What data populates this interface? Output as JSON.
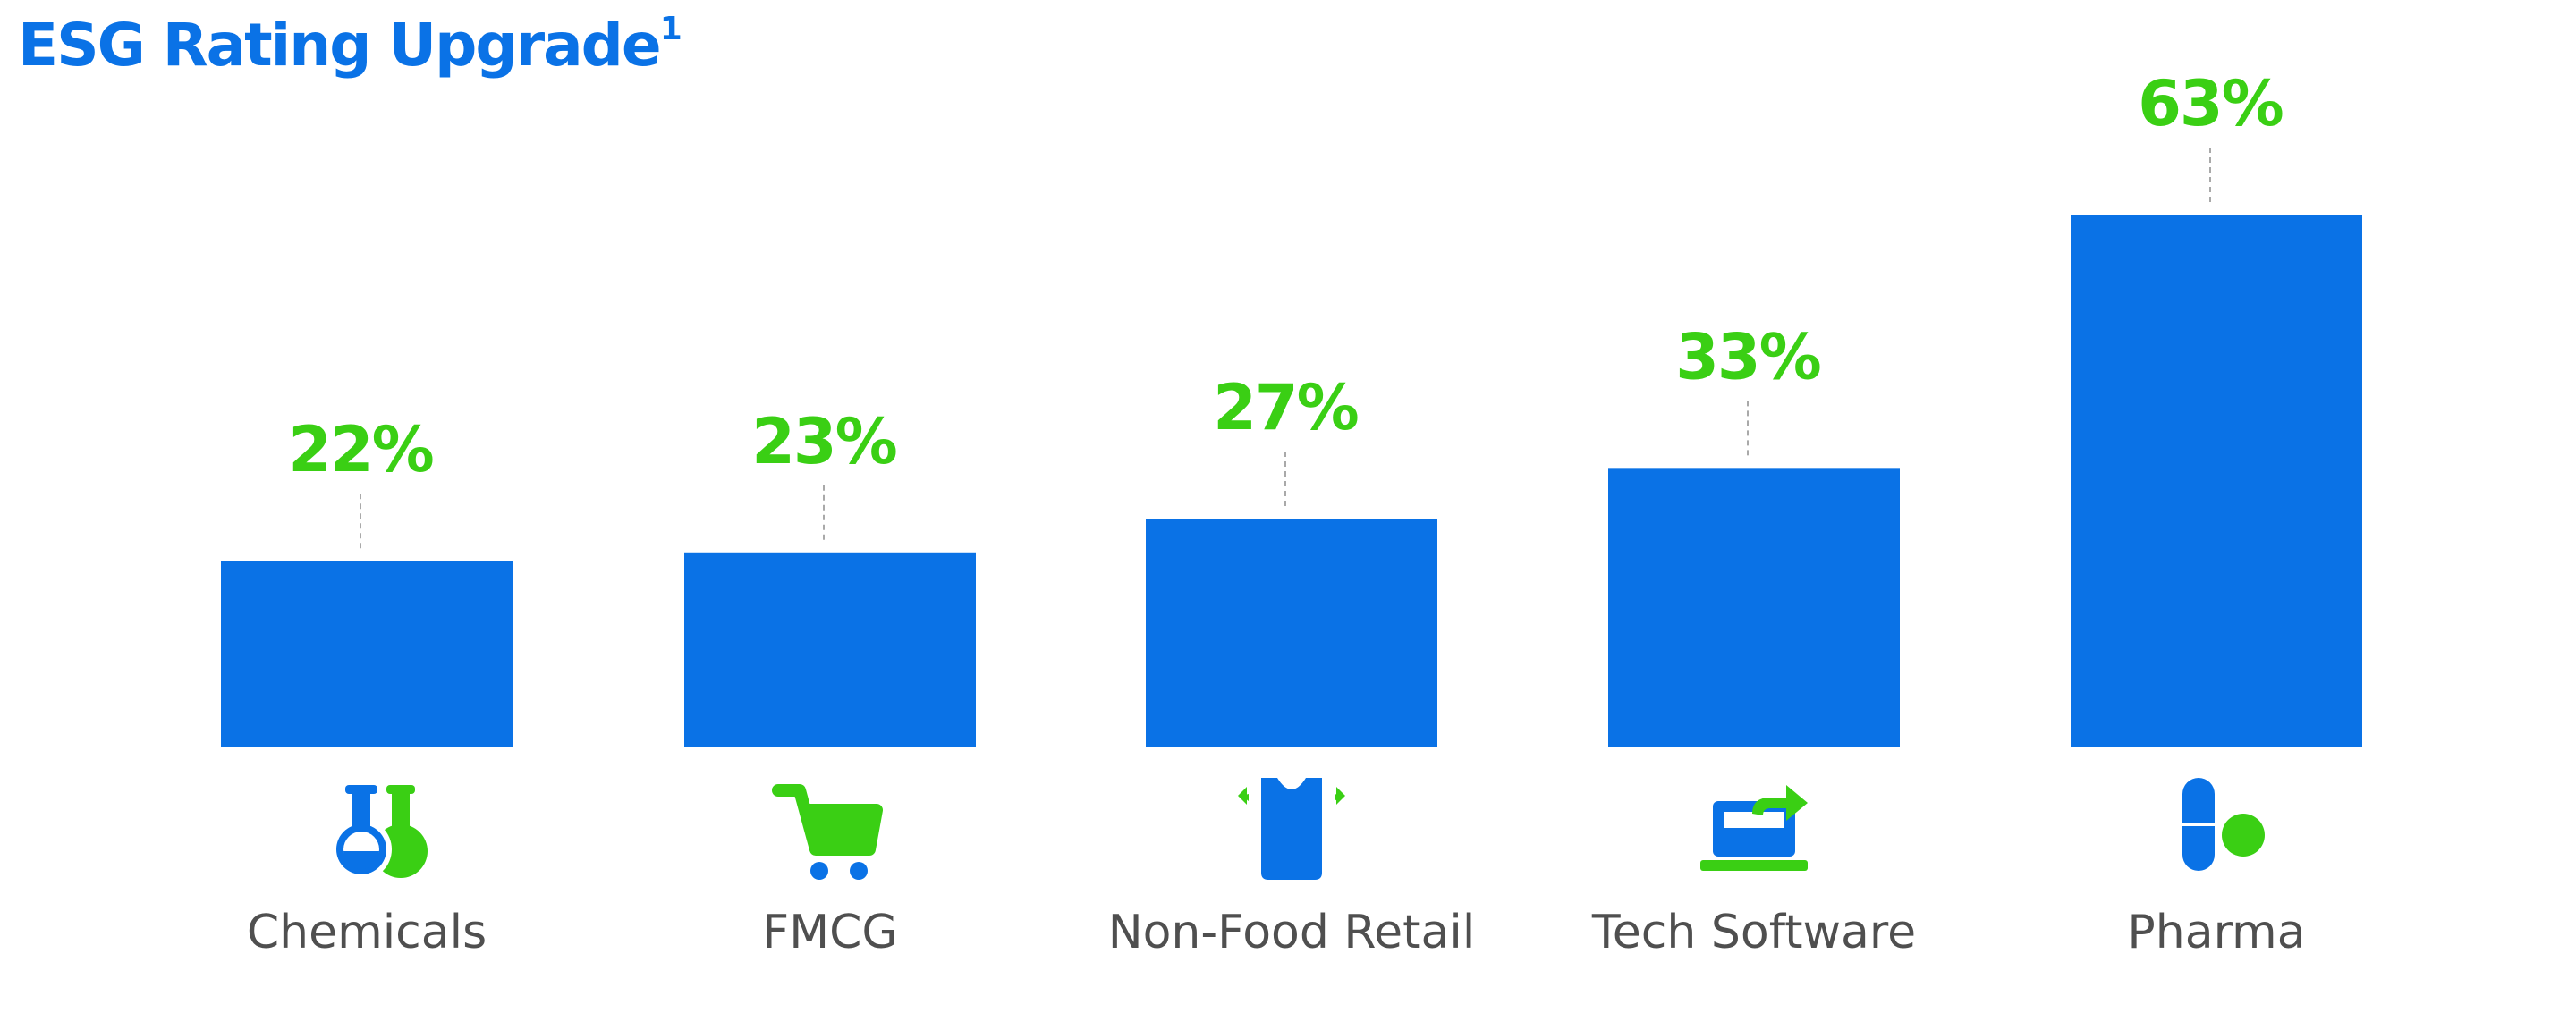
{
  "title": "ESG Rating Upgrade",
  "title_footnote": "1",
  "colors": {
    "bar": "#0A72E6",
    "value_label": "#3ACF14",
    "title": "#0A72E6",
    "category_label": "#4F4F4F",
    "leader_line": "#A9A9A9",
    "icon_blue": "#0A72E6",
    "icon_green": "#3ACF14"
  },
  "chart_data": {
    "type": "bar",
    "title": "ESG Rating Upgrade",
    "categories": [
      "Chemicals",
      "FMCG",
      "Non-Food Retail",
      "Tech Software",
      "Pharma"
    ],
    "values": [
      22,
      23,
      27,
      33,
      63
    ],
    "value_labels": [
      "22%",
      "23%",
      "27%",
      "33%",
      "63%"
    ],
    "icons": [
      "flask-icon",
      "shopping-cart-icon",
      "shirt-icon",
      "laptop-arrow-icon",
      "pill-icon"
    ],
    "xlabel": "",
    "ylabel": "",
    "ylim": [
      0,
      70
    ],
    "grid": false,
    "legend": "none"
  }
}
